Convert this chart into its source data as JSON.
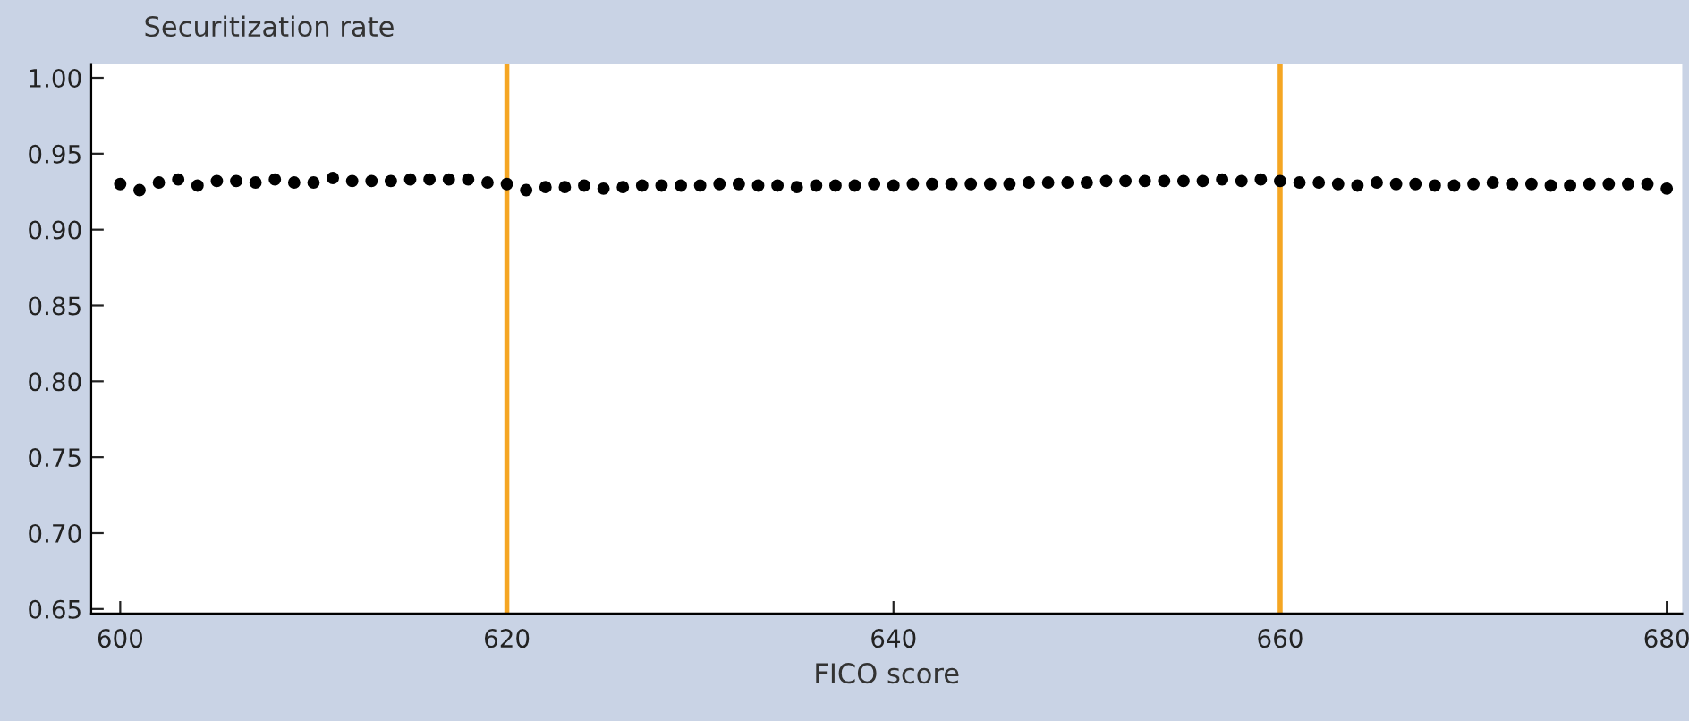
{
  "chart_data": {
    "type": "scatter",
    "ylabel": "Securitization rate",
    "xlabel": "FICO score",
    "x": [
      600,
      601,
      602,
      603,
      604,
      605,
      606,
      607,
      608,
      609,
      610,
      611,
      612,
      613,
      614,
      615,
      616,
      617,
      618,
      619,
      620,
      621,
      622,
      623,
      624,
      625,
      626,
      627,
      628,
      629,
      630,
      631,
      632,
      633,
      634,
      635,
      636,
      637,
      638,
      639,
      640,
      641,
      642,
      643,
      644,
      645,
      646,
      647,
      648,
      649,
      650,
      651,
      652,
      653,
      654,
      655,
      656,
      657,
      658,
      659,
      660,
      661,
      662,
      663,
      664,
      665,
      666,
      667,
      668,
      669,
      670,
      671,
      672,
      673,
      674,
      675,
      676,
      677,
      678,
      679,
      680
    ],
    "series": [
      {
        "color": "#000000",
        "values": [
          0.93,
          0.926,
          0.931,
          0.933,
          0.929,
          0.932,
          0.932,
          0.931,
          0.933,
          0.931,
          0.931,
          0.934,
          0.932,
          0.932,
          0.932,
          0.933,
          0.933,
          0.933,
          0.933,
          0.931,
          0.93,
          0.926,
          0.928,
          0.928,
          0.929,
          0.927,
          0.928,
          0.929,
          0.929,
          0.929,
          0.929,
          0.93,
          0.93,
          0.929,
          0.929,
          0.928,
          0.929,
          0.929,
          0.929,
          0.93,
          0.929,
          0.93,
          0.93,
          0.93,
          0.93,
          0.93,
          0.93,
          0.931,
          0.931,
          0.931,
          0.931,
          0.932,
          0.932,
          0.932,
          0.932,
          0.932,
          0.932,
          0.933,
          0.932,
          0.933,
          0.932,
          0.931,
          0.931,
          0.93,
          0.929,
          0.931,
          0.93,
          0.93,
          0.929,
          0.929,
          0.93,
          0.931,
          0.93,
          0.93,
          0.929,
          0.929,
          0.93,
          0.93,
          0.93,
          0.93,
          0.927
        ]
      }
    ],
    "xlim": [
      598.5,
      680.8
    ],
    "ylim": [
      0.647,
      1.009
    ],
    "xticks": [
      600,
      620,
      640,
      660,
      680
    ],
    "yticks": [
      {
        "value": 0.65,
        "label": "0.65"
      },
      {
        "value": 0.7,
        "label": "0.70"
      },
      {
        "value": 0.75,
        "label": "0.75"
      },
      {
        "value": 0.8,
        "label": "0.80"
      },
      {
        "value": 0.85,
        "label": "0.85"
      },
      {
        "value": 0.9,
        "label": "0.90"
      },
      {
        "value": 0.95,
        "label": "0.95"
      },
      {
        "value": 1.0,
        "label": "1.00"
      }
    ],
    "ref_lines": [
      {
        "axis": "x",
        "value": 620,
        "color": "#f5a623"
      },
      {
        "axis": "x",
        "value": 660,
        "color": "#f5a623"
      }
    ],
    "marker": "circle",
    "grid": false,
    "legend": false
  }
}
